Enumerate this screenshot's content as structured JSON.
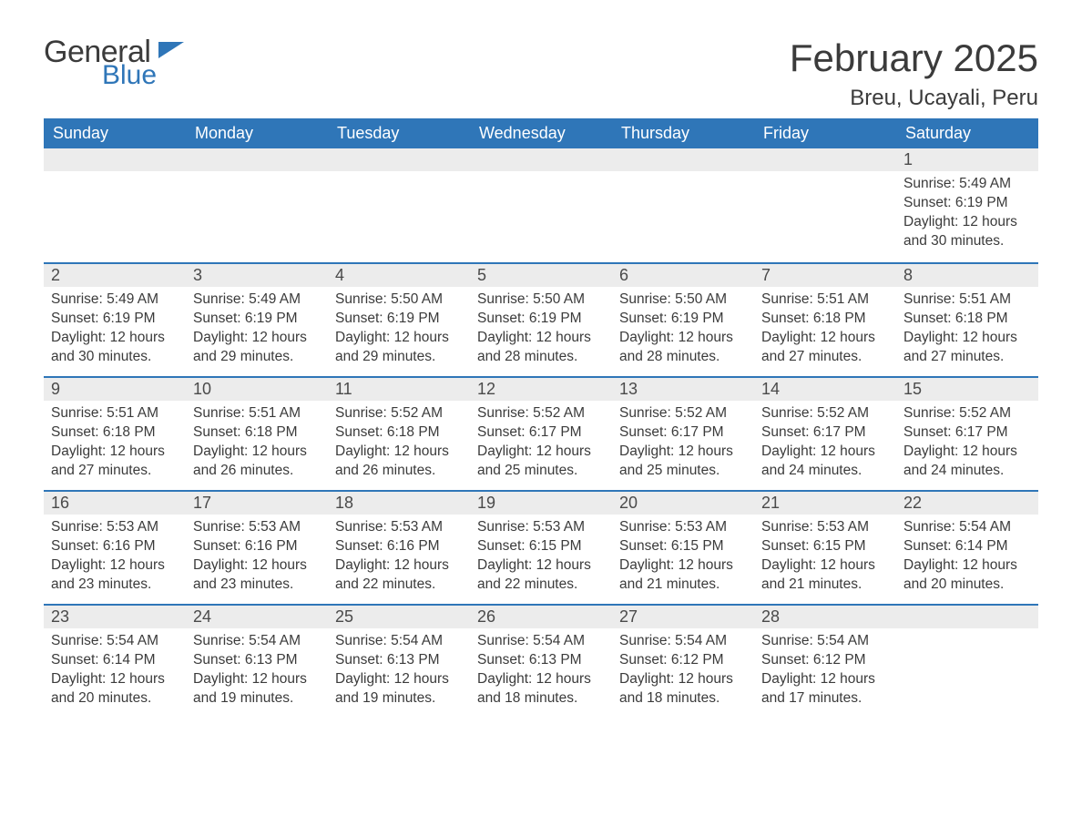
{
  "logo": {
    "text1": "General",
    "text2": "Blue",
    "flag_color": "#2f76b8"
  },
  "title": "February 2025",
  "location": "Breu, Ucayali, Peru",
  "colors": {
    "header_bg": "#2f76b8",
    "header_text": "#ffffff",
    "daynum_bg": "#ececec",
    "border": "#2f76b8",
    "body_text": "#3b3b3b"
  },
  "weekdays": [
    "Sunday",
    "Monday",
    "Tuesday",
    "Wednesday",
    "Thursday",
    "Friday",
    "Saturday"
  ],
  "labels": {
    "sunrise": "Sunrise:",
    "sunset": "Sunset:",
    "daylight": "Daylight:"
  },
  "weeks": [
    [
      null,
      null,
      null,
      null,
      null,
      null,
      {
        "n": "1",
        "sunrise": "5:49 AM",
        "sunset": "6:19 PM",
        "daylight": "12 hours and 30 minutes."
      }
    ],
    [
      {
        "n": "2",
        "sunrise": "5:49 AM",
        "sunset": "6:19 PM",
        "daylight": "12 hours and 30 minutes."
      },
      {
        "n": "3",
        "sunrise": "5:49 AM",
        "sunset": "6:19 PM",
        "daylight": "12 hours and 29 minutes."
      },
      {
        "n": "4",
        "sunrise": "5:50 AM",
        "sunset": "6:19 PM",
        "daylight": "12 hours and 29 minutes."
      },
      {
        "n": "5",
        "sunrise": "5:50 AM",
        "sunset": "6:19 PM",
        "daylight": "12 hours and 28 minutes."
      },
      {
        "n": "6",
        "sunrise": "5:50 AM",
        "sunset": "6:19 PM",
        "daylight": "12 hours and 28 minutes."
      },
      {
        "n": "7",
        "sunrise": "5:51 AM",
        "sunset": "6:18 PM",
        "daylight": "12 hours and 27 minutes."
      },
      {
        "n": "8",
        "sunrise": "5:51 AM",
        "sunset": "6:18 PM",
        "daylight": "12 hours and 27 minutes."
      }
    ],
    [
      {
        "n": "9",
        "sunrise": "5:51 AM",
        "sunset": "6:18 PM",
        "daylight": "12 hours and 27 minutes."
      },
      {
        "n": "10",
        "sunrise": "5:51 AM",
        "sunset": "6:18 PM",
        "daylight": "12 hours and 26 minutes."
      },
      {
        "n": "11",
        "sunrise": "5:52 AM",
        "sunset": "6:18 PM",
        "daylight": "12 hours and 26 minutes."
      },
      {
        "n": "12",
        "sunrise": "5:52 AM",
        "sunset": "6:17 PM",
        "daylight": "12 hours and 25 minutes."
      },
      {
        "n": "13",
        "sunrise": "5:52 AM",
        "sunset": "6:17 PM",
        "daylight": "12 hours and 25 minutes."
      },
      {
        "n": "14",
        "sunrise": "5:52 AM",
        "sunset": "6:17 PM",
        "daylight": "12 hours and 24 minutes."
      },
      {
        "n": "15",
        "sunrise": "5:52 AM",
        "sunset": "6:17 PM",
        "daylight": "12 hours and 24 minutes."
      }
    ],
    [
      {
        "n": "16",
        "sunrise": "5:53 AM",
        "sunset": "6:16 PM",
        "daylight": "12 hours and 23 minutes."
      },
      {
        "n": "17",
        "sunrise": "5:53 AM",
        "sunset": "6:16 PM",
        "daylight": "12 hours and 23 minutes."
      },
      {
        "n": "18",
        "sunrise": "5:53 AM",
        "sunset": "6:16 PM",
        "daylight": "12 hours and 22 minutes."
      },
      {
        "n": "19",
        "sunrise": "5:53 AM",
        "sunset": "6:15 PM",
        "daylight": "12 hours and 22 minutes."
      },
      {
        "n": "20",
        "sunrise": "5:53 AM",
        "sunset": "6:15 PM",
        "daylight": "12 hours and 21 minutes."
      },
      {
        "n": "21",
        "sunrise": "5:53 AM",
        "sunset": "6:15 PM",
        "daylight": "12 hours and 21 minutes."
      },
      {
        "n": "22",
        "sunrise": "5:54 AM",
        "sunset": "6:14 PM",
        "daylight": "12 hours and 20 minutes."
      }
    ],
    [
      {
        "n": "23",
        "sunrise": "5:54 AM",
        "sunset": "6:14 PM",
        "daylight": "12 hours and 20 minutes."
      },
      {
        "n": "24",
        "sunrise": "5:54 AM",
        "sunset": "6:13 PM",
        "daylight": "12 hours and 19 minutes."
      },
      {
        "n": "25",
        "sunrise": "5:54 AM",
        "sunset": "6:13 PM",
        "daylight": "12 hours and 19 minutes."
      },
      {
        "n": "26",
        "sunrise": "5:54 AM",
        "sunset": "6:13 PM",
        "daylight": "12 hours and 18 minutes."
      },
      {
        "n": "27",
        "sunrise": "5:54 AM",
        "sunset": "6:12 PM",
        "daylight": "12 hours and 18 minutes."
      },
      {
        "n": "28",
        "sunrise": "5:54 AM",
        "sunset": "6:12 PM",
        "daylight": "12 hours and 17 minutes."
      },
      null
    ]
  ]
}
